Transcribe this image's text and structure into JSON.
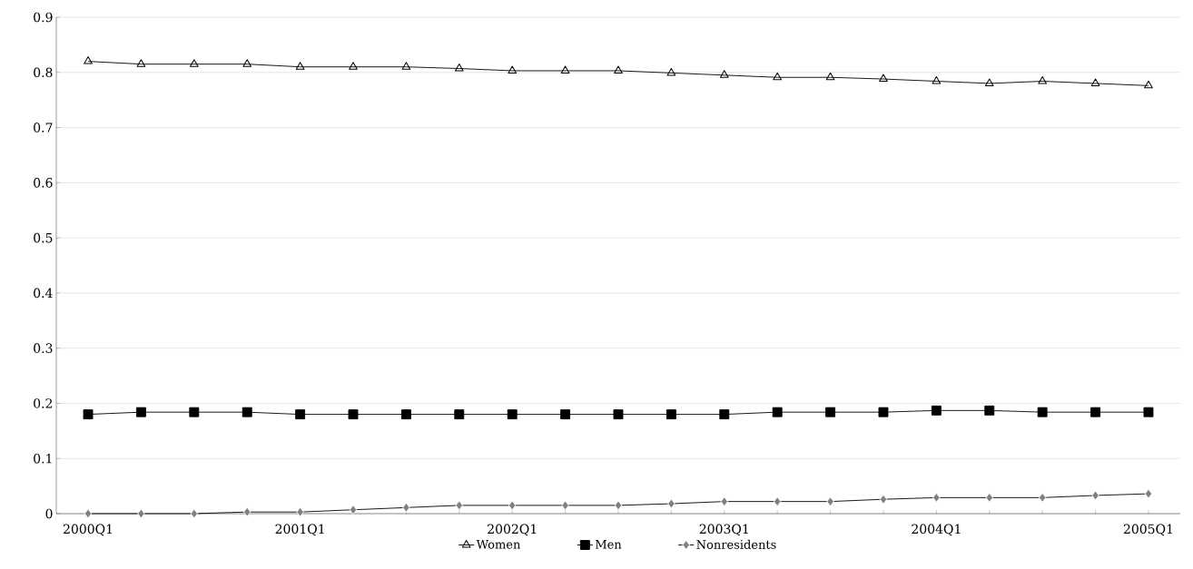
{
  "chart_data": {
    "type": "line",
    "categories": [
      "2000Q1",
      null,
      null,
      null,
      "2001Q1",
      null,
      null,
      null,
      "2002Q1",
      null,
      null,
      null,
      "2003Q1",
      null,
      null,
      null,
      "2004Q1",
      null,
      null,
      null,
      "2005Q1"
    ],
    "series": [
      {
        "name": "Women",
        "color": "#000000",
        "marker": "triangle",
        "values": [
          0.82,
          0.815,
          0.815,
          0.815,
          0.81,
          0.81,
          0.81,
          0.807,
          0.803,
          0.803,
          0.803,
          0.799,
          0.795,
          0.791,
          0.791,
          0.788,
          0.784,
          0.78,
          0.784,
          0.78,
          0.776
        ]
      },
      {
        "name": "Men",
        "color": "#000000",
        "marker": "square",
        "values": [
          0.18,
          0.184,
          0.184,
          0.184,
          0.18,
          0.18,
          0.18,
          0.18,
          0.18,
          0.18,
          0.18,
          0.18,
          0.18,
          0.184,
          0.184,
          0.184,
          0.187,
          0.187,
          0.184,
          0.184,
          0.184
        ]
      },
      {
        "name": "Nonresidents",
        "color": "#808080",
        "marker": "diamond",
        "values": [
          0,
          0,
          0,
          0.003,
          0.003,
          0.007,
          0.011,
          0.015,
          0.015,
          0.015,
          0.015,
          0.018,
          0.022,
          0.022,
          0.022,
          0.026,
          0.029,
          0.029,
          0.029,
          0.033,
          0.036
        ]
      }
    ],
    "ylim": [
      0,
      0.9
    ],
    "yticks": [
      0,
      0.1,
      0.2,
      0.3,
      0.4,
      0.5,
      0.6,
      0.7,
      0.8,
      0.9
    ],
    "grid": "y",
    "legend": "bottom",
    "line_style": "solid"
  }
}
